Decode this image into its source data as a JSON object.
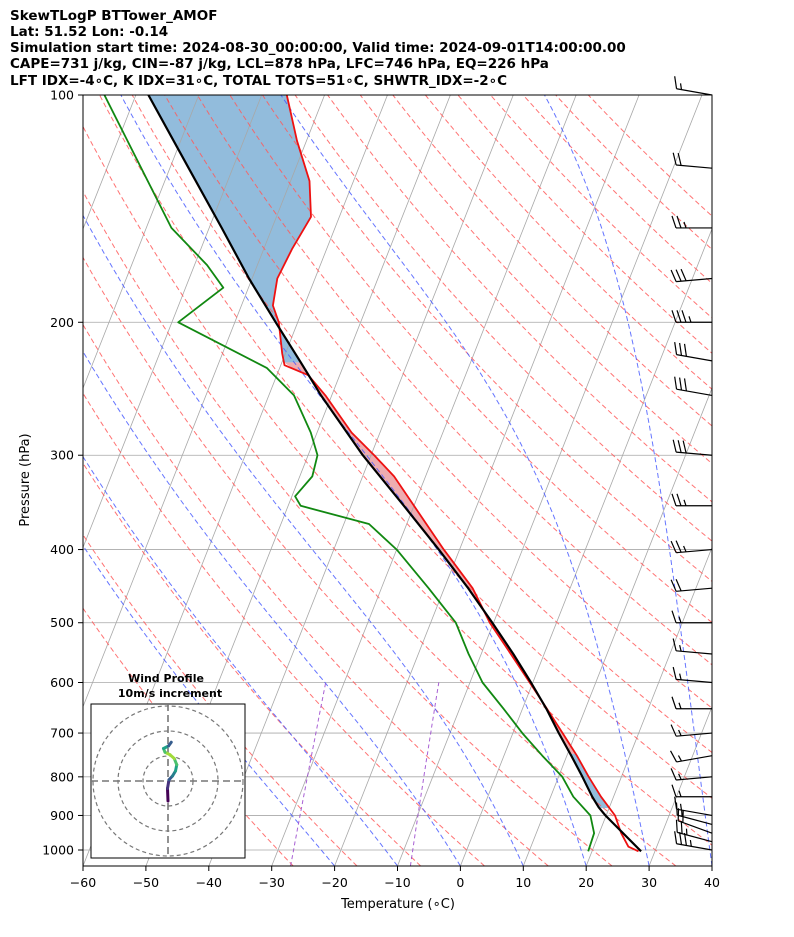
{
  "header": {
    "line1": "SkewTLogP BTTower_AMOF",
    "line2": "Lat: 51.52   Lon: -0.14",
    "line3": "Simulation start time: 2024-08-30_00:00:00, Valid time: 2024-09-01T14:00:00.00",
    "line4": "CAPE=731 j/kg, CIN=-87 j/kg, LCL=878 hPa, LFC=746 hPa, EQ=226 hPa",
    "line5": "LFT IDX=-4∘C, K IDX=31∘C, TOTAL TOTS=51∘C, SHWTR_IDX=-2∘C"
  },
  "chart_data": {
    "type": "skewt",
    "xlabel": "Temperature (∘C)",
    "ylabel": "Pressure (hPa)",
    "xlim": [
      -60,
      40
    ],
    "plim": [
      1050,
      100
    ],
    "skew_deg_per_decade": 47.4,
    "xticks": [
      -60,
      -50,
      -40,
      -30,
      -20,
      -10,
      0,
      10,
      20,
      30,
      40
    ],
    "pticks": [
      100,
      200,
      300,
      400,
      500,
      600,
      700,
      800,
      900,
      1000
    ],
    "grid": true,
    "colors": {
      "temperature": "#ee1111",
      "dewpoint": "#118811",
      "parcel": "#000000",
      "cape": "#e3757c",
      "cin": "#4a8fc4",
      "dry_adiabat": "#ff5a5a",
      "moist_adiabat": "#4a5dff",
      "mixing_ratio": "#9944cc",
      "grid": "#a8a8a8"
    },
    "temperature": {
      "p": [
        1004,
        990,
        950,
        900,
        850,
        800,
        750,
        700,
        650,
        600,
        550,
        500,
        450,
        400,
        350,
        320,
        300,
        280,
        250,
        235,
        228,
        220,
        200,
        190,
        175,
        160,
        145,
        130,
        115,
        100
      ],
      "t": [
        27.4,
        25.5,
        23.5,
        21.4,
        18.0,
        14.8,
        11.6,
        7.9,
        3.9,
        -0.5,
        -5.3,
        -10.6,
        -15.5,
        -22.5,
        -30.0,
        -35.0,
        -39.5,
        -44.5,
        -51.0,
        -55.0,
        -59.4,
        -60.5,
        -63.0,
        -65.0,
        -66.0,
        -65.5,
        -64.5,
        -67.0,
        -71.5,
        -76.0
      ]
    },
    "dewpoint": {
      "p": [
        1004,
        950,
        900,
        850,
        800,
        750,
        700,
        650,
        600,
        550,
        500,
        450,
        400,
        370,
        350,
        340,
        320,
        300,
        280,
        250,
        230,
        200,
        180,
        168,
        150,
        100
      ],
      "t": [
        19.4,
        19.2,
        17.5,
        13.6,
        10.6,
        6.1,
        1.5,
        -3.0,
        -8.0,
        -12.0,
        -16.0,
        -22.5,
        -30.0,
        -36.0,
        -48.0,
        -49.5,
        -48.0,
        -48.5,
        -51.0,
        -56.0,
        -62.0,
        -79.0,
        -74.0,
        -78.0,
        -86.0,
        -105.0
      ]
    },
    "parcel": {
      "p": [
        1004,
        900,
        878,
        850,
        800,
        750,
        700,
        650,
        600,
        550,
        500,
        450,
        400,
        350,
        300,
        250,
        226,
        200,
        175,
        150,
        125,
        100
      ],
      "t": [
        27.8,
        19.9,
        18.3,
        16.6,
        13.8,
        10.7,
        7.3,
        3.8,
        -0.3,
        -4.9,
        -10.2,
        -16.2,
        -23.3,
        -31.6,
        -41.3,
        -51.7,
        -57.0,
        -63.5,
        -70.5,
        -78.0,
        -87.0,
        -98.0
      ]
    },
    "cape_color": "#e3757c",
    "cin_color": "#4a8fc4",
    "wind_barbs": {
      "p": [
        1000,
        975,
        950,
        925,
        900,
        850,
        800,
        750,
        700,
        650,
        600,
        550,
        500,
        450,
        400,
        350,
        300,
        250,
        225,
        200,
        175,
        150,
        125,
        100
      ],
      "speed_kt": [
        35,
        25,
        20,
        15,
        15,
        15,
        15,
        15,
        15,
        15,
        15,
        15,
        15,
        20,
        25,
        25,
        30,
        30,
        30,
        35,
        30,
        25,
        20,
        15
      ],
      "dir_deg": [
        280,
        285,
        290,
        285,
        280,
        270,
        265,
        260,
        265,
        270,
        275,
        275,
        270,
        265,
        265,
        270,
        275,
        280,
        280,
        270,
        265,
        270,
        275,
        280
      ]
    },
    "inset": {
      "title": "Wind Profile",
      "subtitle": "10m/s increment",
      "rings_ms": [
        10,
        20,
        30
      ],
      "hodograph_u": [
        0.0,
        -0.2,
        0.4,
        1.8,
        3.0,
        3.5,
        2.5,
        0.8,
        -1.2,
        -1.8,
        0.2,
        1.3
      ],
      "hodograph_v": [
        -8.0,
        -3.0,
        0.5,
        2.0,
        4.0,
        6.5,
        9.0,
        10.5,
        11.5,
        13.0,
        14.0,
        15.5
      ],
      "colormap": "viridis"
    }
  }
}
